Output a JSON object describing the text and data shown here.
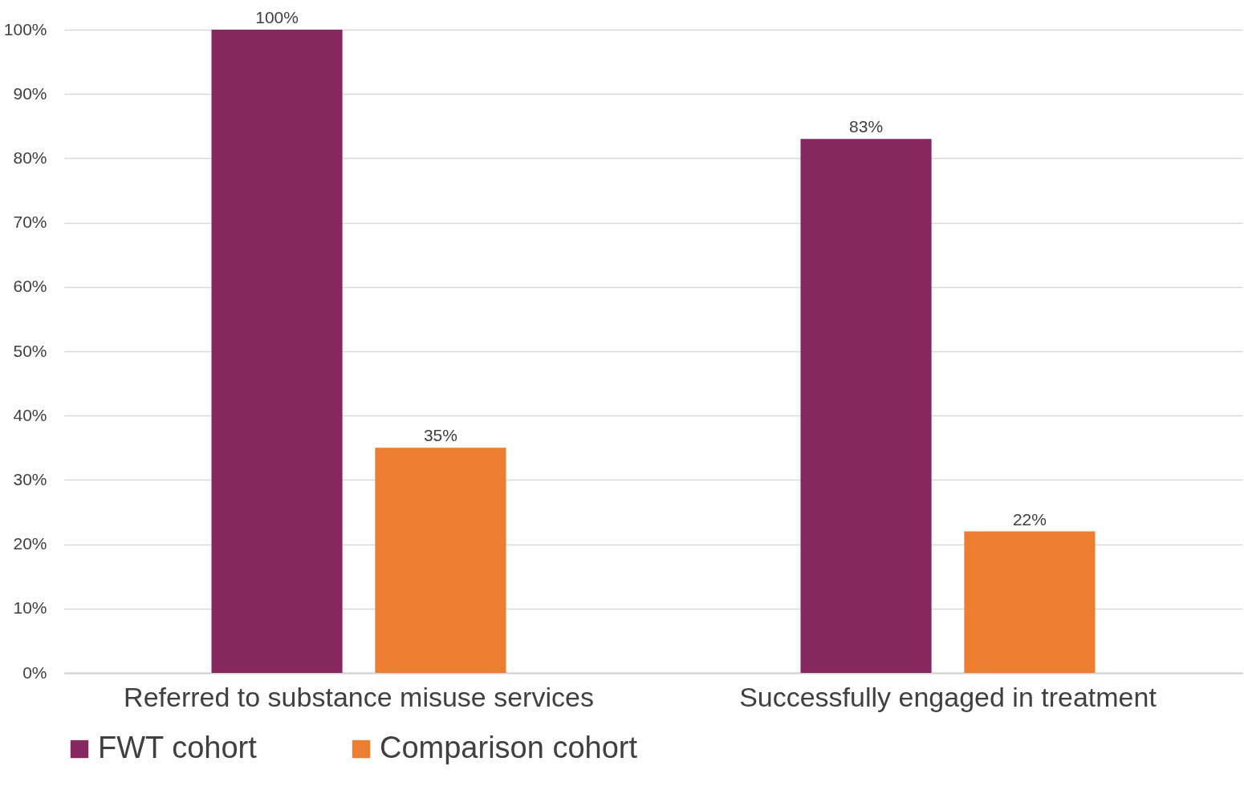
{
  "chart_data": {
    "type": "bar",
    "categories": [
      "Referred to substance misuse services",
      "Successfully engaged in treatment"
    ],
    "series": [
      {
        "name": "FWT cohort",
        "color": "#86285f",
        "values": [
          100,
          83
        ],
        "value_labels": [
          "100%",
          "83%"
        ]
      },
      {
        "name": "Comparison cohort",
        "color": "#ed7d31",
        "values": [
          35,
          22
        ],
        "value_labels": [
          "35%",
          "22%"
        ]
      }
    ],
    "ylim": [
      0,
      100
    ],
    "yticks": [
      {
        "value": 0,
        "label": "0%"
      },
      {
        "value": 10,
        "label": "10%"
      },
      {
        "value": 20,
        "label": "20%"
      },
      {
        "value": 30,
        "label": "30%"
      },
      {
        "value": 40,
        "label": "40%"
      },
      {
        "value": 50,
        "label": "50%"
      },
      {
        "value": 60,
        "label": "60%"
      },
      {
        "value": 70,
        "label": "70%"
      },
      {
        "value": 80,
        "label": "80%"
      },
      {
        "value": 90,
        "label": "90%"
      },
      {
        "value": 100,
        "label": "100%"
      }
    ],
    "grid": "y",
    "legend": "bottom"
  }
}
